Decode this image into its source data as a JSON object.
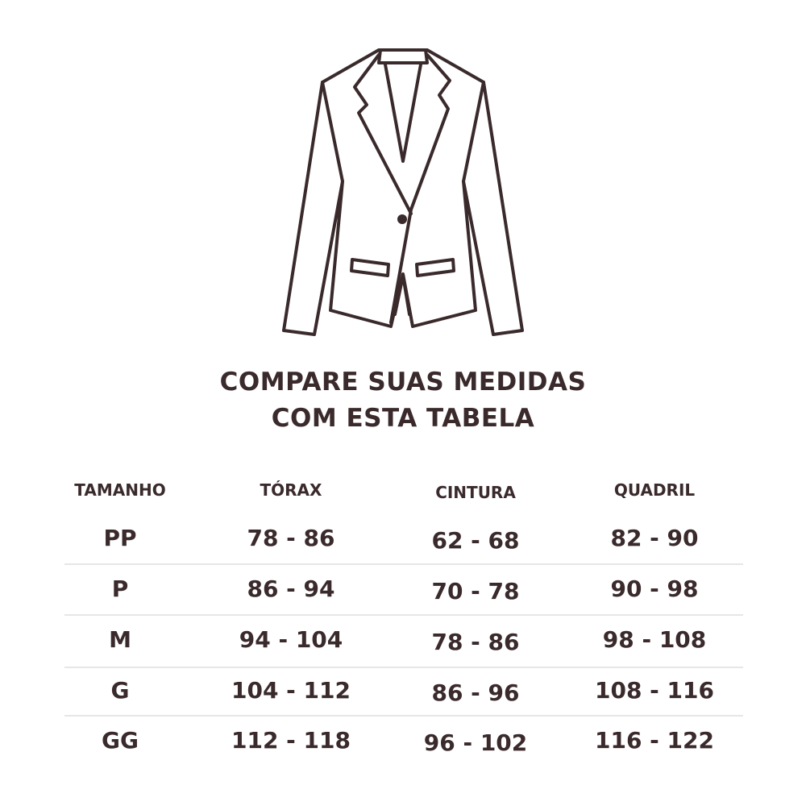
{
  "illustration": {
    "icon": "blazer-jacket-icon",
    "stroke_color": "#3a2a2c"
  },
  "title": {
    "line1": "COMPARE SUAS MEDIDAS",
    "line2": "COM ESTA TABELA"
  },
  "table": {
    "headers": [
      "TAMANHO",
      "TÓRAX",
      "CINTURA",
      "QUADRIL"
    ],
    "rows": [
      [
        "PP",
        "78 - 86",
        "62 - 68",
        "82 - 90"
      ],
      [
        "P",
        "86 - 94",
        "70 - 78",
        "90 - 98"
      ],
      [
        "M",
        "94 - 104",
        "78 - 86",
        "98 - 108"
      ],
      [
        "G",
        "104 - 112",
        "86 - 96",
        "108 - 116"
      ],
      [
        "GG",
        "112 - 118",
        "96 - 102",
        "116 - 122"
      ]
    ]
  },
  "colors": {
    "text": "#3a2a2c",
    "divider": "#e6e6e6",
    "background": "#ffffff"
  }
}
